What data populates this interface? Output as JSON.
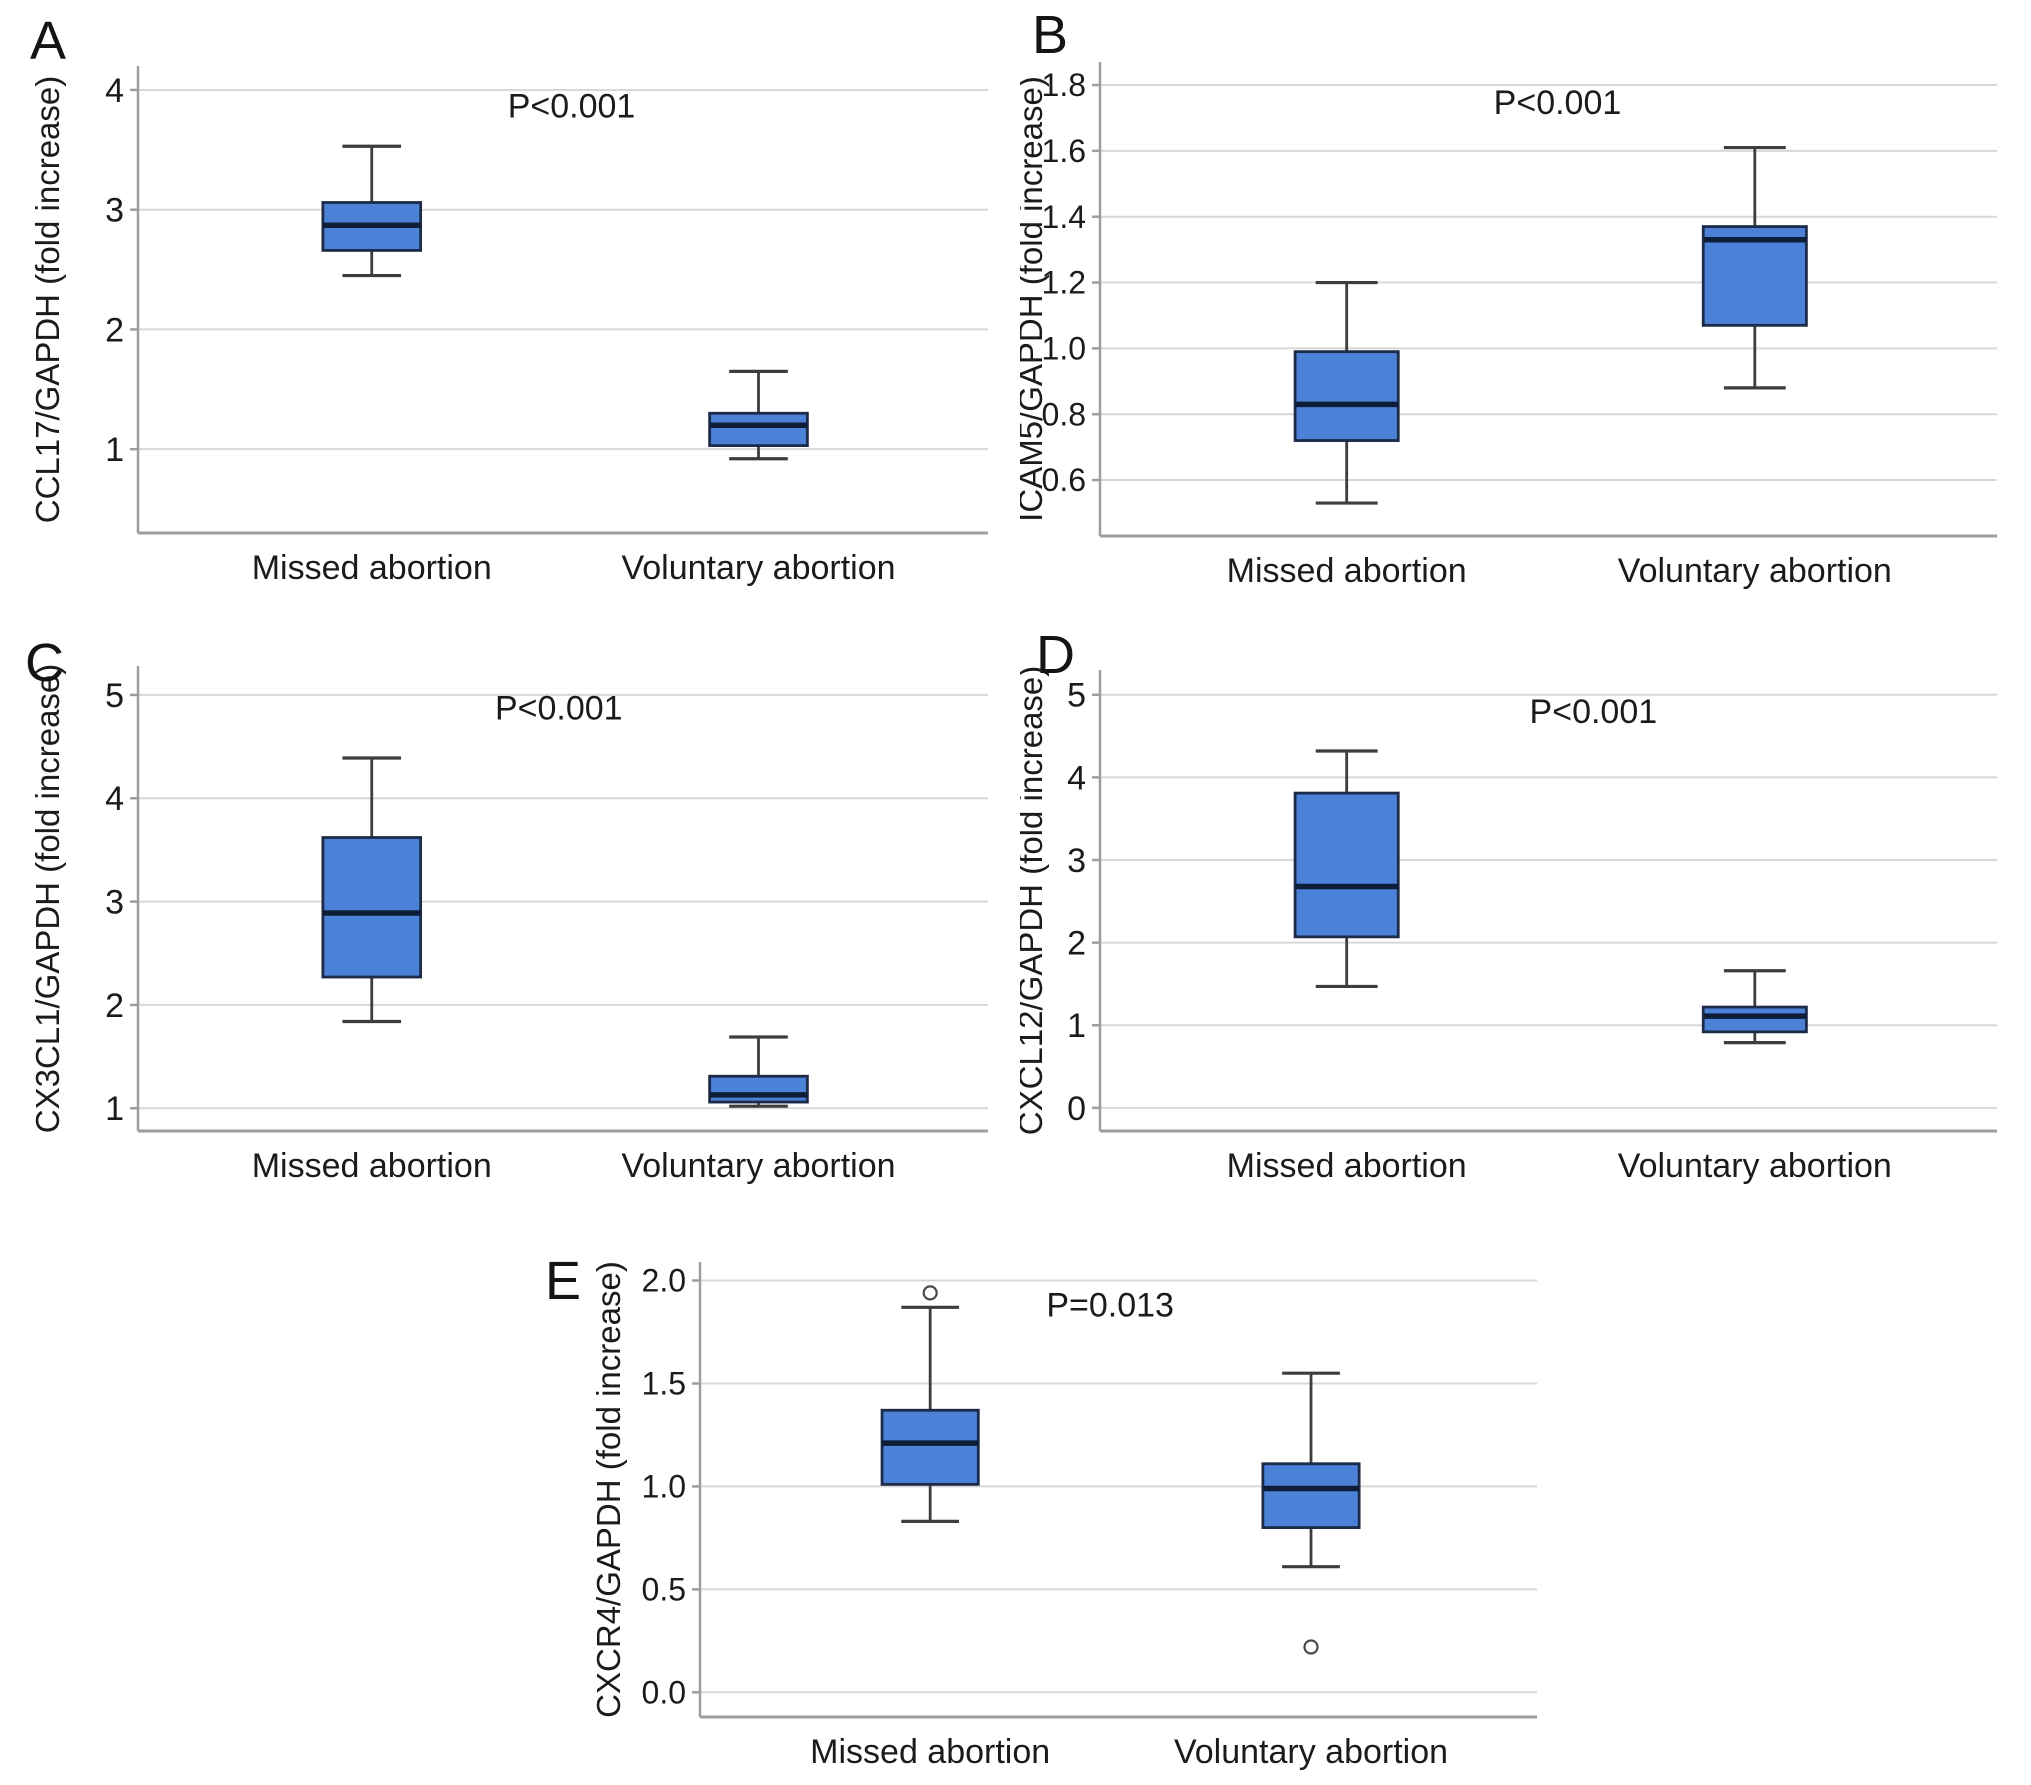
{
  "figure": {
    "groups": [
      "Missed abortion",
      "Voluntary abortion"
    ],
    "panel_letters": [
      "A",
      "B",
      "C",
      "D",
      "E"
    ]
  },
  "colors": {
    "background": "#ffffff",
    "box_fill": "#4c81d8",
    "box_border": "#1c2b47",
    "median": "#0f1e38",
    "whisker": "#3d3d3d",
    "grid": "#d8d8d8",
    "axis": "#9e9e9e",
    "text": "#1b1b1b",
    "outlier": "#4a4a4a"
  },
  "chart_data": [
    {
      "type": "box",
      "panel": "A",
      "ylabel": "CCL17/GAPDH (fold increase)",
      "p_label": "P<0.001",
      "categories": [
        "Missed abortion",
        "Voluntary abortion"
      ],
      "yticks": [
        1,
        2,
        3,
        4
      ],
      "ytick_labels": [
        "1",
        "2",
        "3",
        "4"
      ],
      "ylim": [
        0.3,
        4.2
      ],
      "grid": true,
      "series": [
        {
          "name": "Missed abortion",
          "whisker_low": 2.45,
          "q1": 2.66,
          "median": 2.87,
          "q3": 3.06,
          "whisker_high": 3.53,
          "outliers": []
        },
        {
          "name": "Voluntary abortion",
          "whisker_low": 0.92,
          "q1": 1.03,
          "median": 1.2,
          "q3": 1.3,
          "whisker_high": 1.65,
          "outliers": []
        }
      ]
    },
    {
      "type": "box",
      "panel": "B",
      "ylabel": "ICAM5/GAPDH (fold increase)",
      "p_label": "P<0.001",
      "categories": [
        "Missed abortion",
        "Voluntary abortion"
      ],
      "yticks": [
        0.6,
        0.8,
        1.0,
        1.2,
        1.4,
        1.6,
        1.8
      ],
      "ytick_labels": [
        "0.6",
        "0.8",
        "1.0",
        "1.2",
        "1.4",
        "1.6",
        "1.8"
      ],
      "ylim": [
        0.43,
        1.87
      ],
      "grid": true,
      "series": [
        {
          "name": "Missed abortion",
          "whisker_low": 0.53,
          "q1": 0.72,
          "median": 0.83,
          "q3": 0.99,
          "whisker_high": 1.2,
          "outliers": []
        },
        {
          "name": "Voluntary abortion",
          "whisker_low": 0.88,
          "q1": 1.07,
          "median": 1.33,
          "q3": 1.37,
          "whisker_high": 1.61,
          "outliers": []
        }
      ]
    },
    {
      "type": "box",
      "panel": "C",
      "ylabel": "CX3CL1/GAPDH (fold increase)",
      "p_label": "P<0.001",
      "categories": [
        "Missed abortion",
        "Voluntary abortion"
      ],
      "yticks": [
        1,
        2,
        3,
        4,
        5
      ],
      "ytick_labels": [
        "1",
        "2",
        "3",
        "4",
        "5"
      ],
      "ylim": [
        0.78,
        5.28
      ],
      "grid": true,
      "series": [
        {
          "name": "Missed abortion",
          "whisker_low": 1.84,
          "q1": 2.27,
          "median": 2.89,
          "q3": 3.62,
          "whisker_high": 4.39,
          "outliers": []
        },
        {
          "name": "Voluntary abortion",
          "whisker_low": 1.02,
          "q1": 1.06,
          "median": 1.13,
          "q3": 1.31,
          "whisker_high": 1.69,
          "outliers": []
        }
      ]
    },
    {
      "type": "box",
      "panel": "D",
      "ylabel": "CXCL12/GAPDH (fold increase)",
      "p_label": "P<0.001",
      "categories": [
        "Missed abortion",
        "Voluntary abortion"
      ],
      "yticks": [
        0,
        1,
        2,
        3,
        4,
        5
      ],
      "ytick_labels": [
        "0",
        "1",
        "2",
        "3",
        "4",
        "5"
      ],
      "ylim": [
        -0.28,
        5.3
      ],
      "grid": true,
      "series": [
        {
          "name": "Missed abortion",
          "whisker_low": 1.47,
          "q1": 2.07,
          "median": 2.68,
          "q3": 3.81,
          "whisker_high": 4.32,
          "outliers": []
        },
        {
          "name": "Voluntary abortion",
          "whisker_low": 0.79,
          "q1": 0.92,
          "median": 1.11,
          "q3": 1.22,
          "whisker_high": 1.66,
          "outliers": []
        }
      ]
    },
    {
      "type": "box",
      "panel": "E",
      "ylabel": "CXCR4/GAPDH (fold increase)",
      "p_label": "P=0.013",
      "categories": [
        "Missed abortion",
        "Voluntary abortion"
      ],
      "yticks": [
        0.0,
        0.5,
        1.0,
        1.5,
        2.0
      ],
      "ytick_labels": [
        "0.0",
        "0.5",
        "1.0",
        "1.5",
        "2.0"
      ],
      "ylim": [
        -0.12,
        2.09
      ],
      "grid": true,
      "series": [
        {
          "name": "Missed abortion",
          "whisker_low": 0.83,
          "q1": 1.01,
          "median": 1.21,
          "q3": 1.37,
          "whisker_high": 1.87,
          "outliers": [
            1.94
          ]
        },
        {
          "name": "Voluntary abortion",
          "whisker_low": 0.61,
          "q1": 0.8,
          "median": 0.99,
          "q3": 1.11,
          "whisker_high": 1.55,
          "outliers": [
            0.22
          ]
        }
      ]
    }
  ]
}
